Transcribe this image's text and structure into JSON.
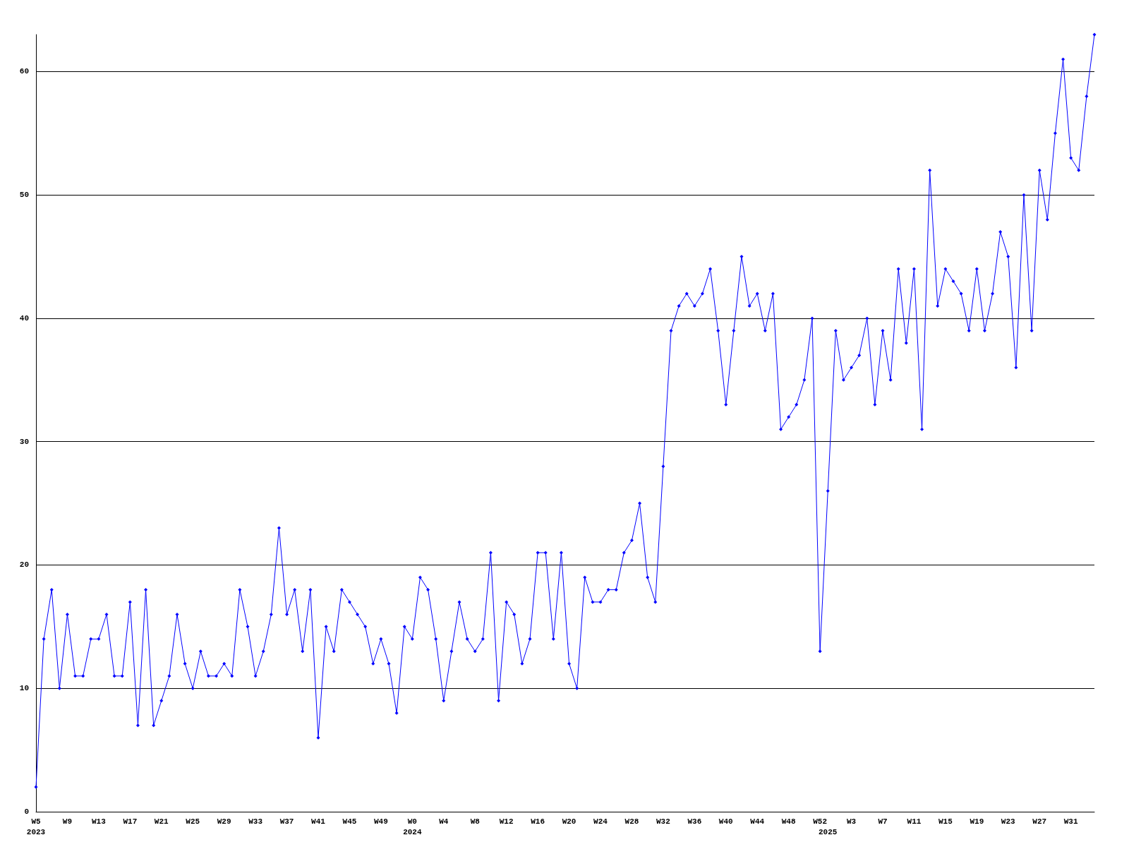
{
  "chart_data": {
    "type": "line",
    "categories": [
      "W5\n2023",
      null,
      null,
      null,
      "W9",
      null,
      null,
      null,
      "W13",
      null,
      null,
      null,
      "W17",
      null,
      null,
      null,
      "W21",
      null,
      null,
      null,
      "W25",
      null,
      null,
      null,
      "W29",
      null,
      null,
      null,
      "W33",
      null,
      null,
      null,
      "W37",
      null,
      null,
      null,
      "W41",
      null,
      null,
      null,
      "W45",
      null,
      null,
      null,
      "W49",
      null,
      null,
      null,
      "W0\n2024",
      null,
      null,
      null,
      "W4",
      null,
      null,
      null,
      "W8",
      null,
      null,
      null,
      "W12",
      null,
      null,
      null,
      "W16",
      null,
      null,
      null,
      "W20",
      null,
      null,
      null,
      "W24",
      null,
      null,
      null,
      "W28",
      null,
      null,
      null,
      "W32",
      null,
      null,
      null,
      "W36",
      null,
      null,
      null,
      "W40",
      null,
      null,
      null,
      "W44",
      null,
      null,
      null,
      "W48",
      null,
      null,
      null,
      "W52",
      "\n2025",
      null,
      null,
      "W3",
      null,
      null,
      null,
      "W7",
      null,
      null,
      null,
      "W11",
      null,
      null,
      null,
      "W15",
      null,
      null,
      null,
      "W19",
      null,
      null,
      null,
      "W23",
      null,
      null,
      null,
      "W27",
      null,
      null,
      null,
      "W31",
      null,
      null,
      null
    ],
    "series": [
      {
        "color": "#0000ff",
        "values": [
          2,
          14,
          18,
          10,
          16,
          11,
          11,
          14,
          14,
          16,
          11,
          11,
          17,
          7,
          18,
          7,
          9,
          11,
          16,
          12,
          10,
          13,
          11,
          11,
          12,
          11,
          18,
          15,
          11,
          13,
          16,
          23,
          16,
          18,
          13,
          18,
          6,
          15,
          13,
          18,
          17,
          16,
          15,
          12,
          14,
          12,
          8,
          15,
          14,
          19,
          18,
          14,
          9,
          13,
          17,
          14,
          13,
          14,
          21,
          9,
          17,
          16,
          12,
          14,
          21,
          21,
          14,
          21,
          12,
          10,
          19,
          17,
          17,
          18,
          18,
          21,
          22,
          25,
          19,
          17,
          28,
          39,
          41,
          42,
          41,
          42,
          44,
          39,
          33,
          39,
          45,
          41,
          42,
          39,
          42,
          31,
          32,
          33,
          35,
          40,
          13,
          26,
          39,
          35,
          36,
          37,
          40,
          33,
          39,
          35,
          44,
          38,
          44,
          31,
          52,
          41,
          44,
          43,
          42,
          39,
          44,
          39,
          42,
          47,
          45,
          36,
          50,
          39,
          52,
          48,
          55,
          61,
          53,
          52,
          58,
          63
        ]
      }
    ],
    "ylim": [
      0,
      63
    ],
    "yticks": [
      0,
      10,
      20,
      30,
      40,
      50,
      60
    ],
    "grid": "y",
    "marker": "diamond",
    "line_style": "solid"
  }
}
